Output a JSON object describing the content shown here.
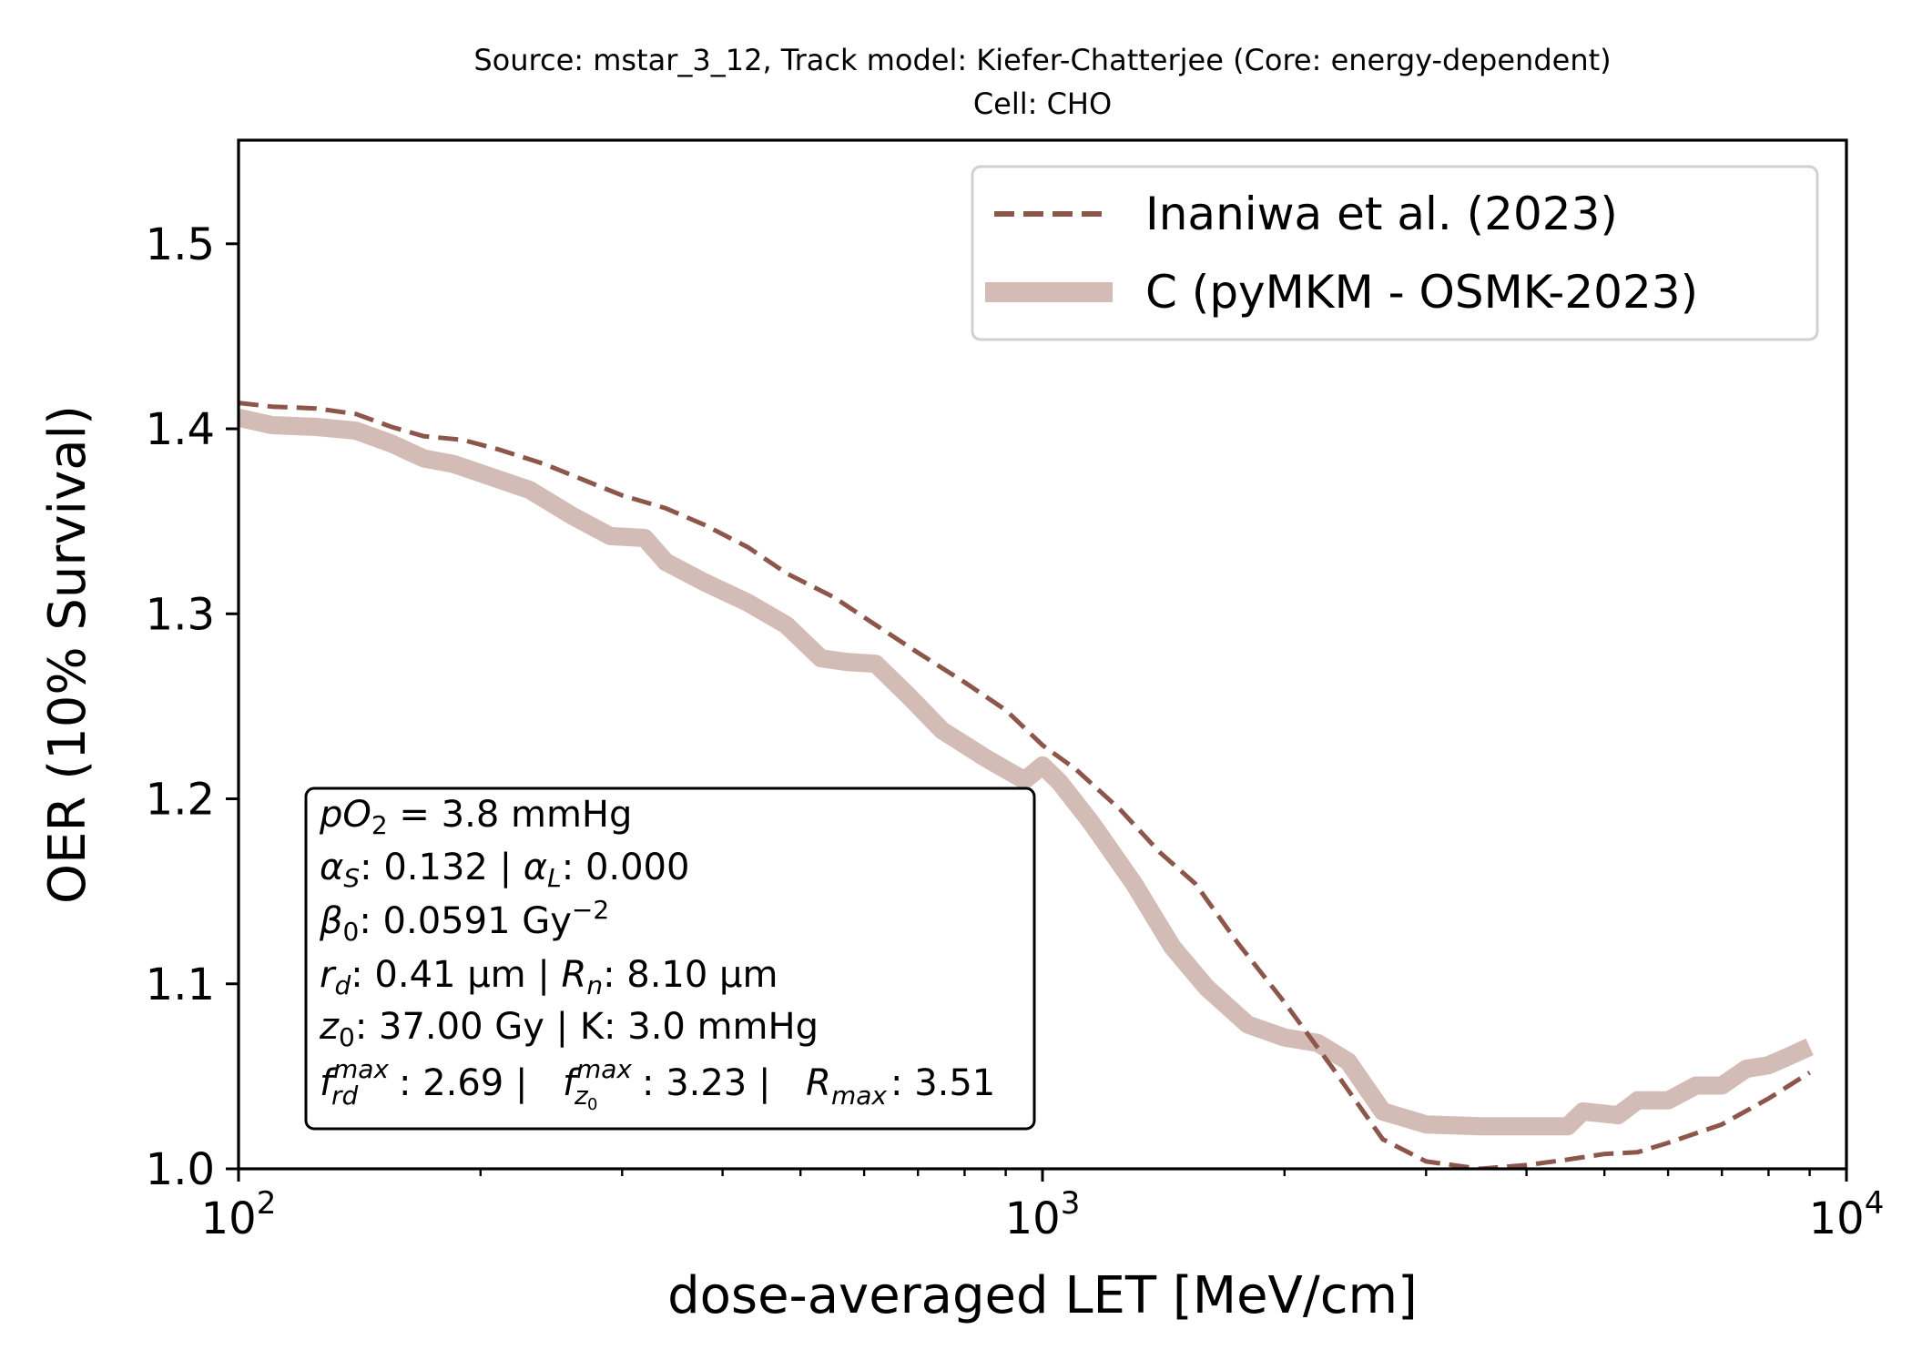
{
  "chart_data": {
    "type": "line",
    "title": "Source: mstar_3_12, Track model: Kiefer-Chatterjee (Core: energy-dependent)",
    "subtitle": "Cell: CHO",
    "xlabel": "dose-averaged LET [MeV/cm]",
    "ylabel": "OER (10% Survival)",
    "xscale": "log",
    "xlim": [
      100,
      10000
    ],
    "ylim": [
      1.0,
      1.556
    ],
    "x_ticks": [
      {
        "value": 100,
        "base": "10",
        "exp": "2"
      },
      {
        "value": 1000,
        "base": "10",
        "exp": "3"
      },
      {
        "value": 10000,
        "base": "10",
        "exp": "4"
      }
    ],
    "y_ticks": [
      "1.0",
      "1.1",
      "1.2",
      "1.3",
      "1.4",
      "1.5"
    ],
    "legend_position": "top-right",
    "series": [
      {
        "name": "Inaniwa et al. (2023)",
        "color": "#8c564b",
        "style": "dashed",
        "x": [
          100,
          110,
          125,
          140,
          155,
          170,
          190,
          210,
          240,
          270,
          300,
          340,
          380,
          430,
          480,
          550,
          620,
          700,
          800,
          900,
          1000,
          1100,
          1250,
          1400,
          1550,
          1750,
          2000,
          2300,
          2650,
          3000,
          3500,
          4000,
          4500,
          5000,
          5500,
          6000,
          7000,
          8000,
          9000
        ],
        "y": [
          1.414,
          1.412,
          1.411,
          1.408,
          1.401,
          1.396,
          1.394,
          1.389,
          1.381,
          1.372,
          1.364,
          1.357,
          1.348,
          1.336,
          1.322,
          1.309,
          1.294,
          1.279,
          1.263,
          1.248,
          1.229,
          1.216,
          1.194,
          1.171,
          1.154,
          1.122,
          1.09,
          1.054,
          1.016,
          1.004,
          1.0,
          1.002,
          1.005,
          1.008,
          1.009,
          1.014,
          1.024,
          1.038,
          1.052
        ]
      },
      {
        "name": "C (pyMKM - OSMK-2023)",
        "color": "#d4bcb6",
        "style": "solid",
        "x": [
          100,
          110,
          125,
          140,
          155,
          170,
          185,
          200,
          230,
          260,
          290,
          320,
          340,
          380,
          430,
          480,
          530,
          570,
          620,
          680,
          750,
          850,
          950,
          1000,
          1050,
          1150,
          1300,
          1450,
          1600,
          1800,
          2000,
          2200,
          2400,
          2650,
          3000,
          3500,
          4000,
          4500,
          4700,
          5200,
          5500,
          6000,
          6500,
          7000,
          7500,
          8000,
          8500,
          9000
        ],
        "y": [
          1.406,
          1.402,
          1.401,
          1.399,
          1.392,
          1.384,
          1.381,
          1.376,
          1.367,
          1.353,
          1.342,
          1.341,
          1.328,
          1.317,
          1.306,
          1.294,
          1.276,
          1.274,
          1.273,
          1.256,
          1.237,
          1.222,
          1.21,
          1.218,
          1.209,
          1.187,
          1.154,
          1.12,
          1.098,
          1.078,
          1.071,
          1.068,
          1.058,
          1.031,
          1.024,
          1.023,
          1.023,
          1.023,
          1.031,
          1.029,
          1.037,
          1.037,
          1.045,
          1.045,
          1.054,
          1.056,
          1.061,
          1.066
        ]
      }
    ],
    "info_box": {
      "line1": {
        "var": "pO",
        "sub": "2",
        "rest": " = 3.8 mmHg"
      },
      "line2": {
        "a": "α",
        "a_sub": "S",
        "a_val": ": 0.132 | ",
        "b": "α",
        "b_sub": "L",
        "b_val": ": 0.000"
      },
      "line3": {
        "var": "β",
        "sub": "0",
        "val": ": 0.0591 Gy",
        "sup": "−2"
      },
      "line4": {
        "a": "r",
        "a_sub": "d",
        "a_val": ": 0.41 µm | ",
        "b": "R",
        "b_sub": "n",
        "b_val": ": 8.10 µm"
      },
      "line5": {
        "var": "z",
        "sub": "0",
        "val": ": 37.00 Gy | K: 3.0 mmHg"
      },
      "line6": {
        "f": "f",
        "f1_sup": "max",
        "f1_sub": "rd",
        "f1_val": ": 2.69 | ",
        "f2_sup": "max",
        "f2_sub": "z",
        "f2_subsub": "0",
        "f2_val": ": 3.23 | ",
        "r": "R",
        "r_sub": "max",
        "r_val": ": 3.51"
      }
    }
  }
}
